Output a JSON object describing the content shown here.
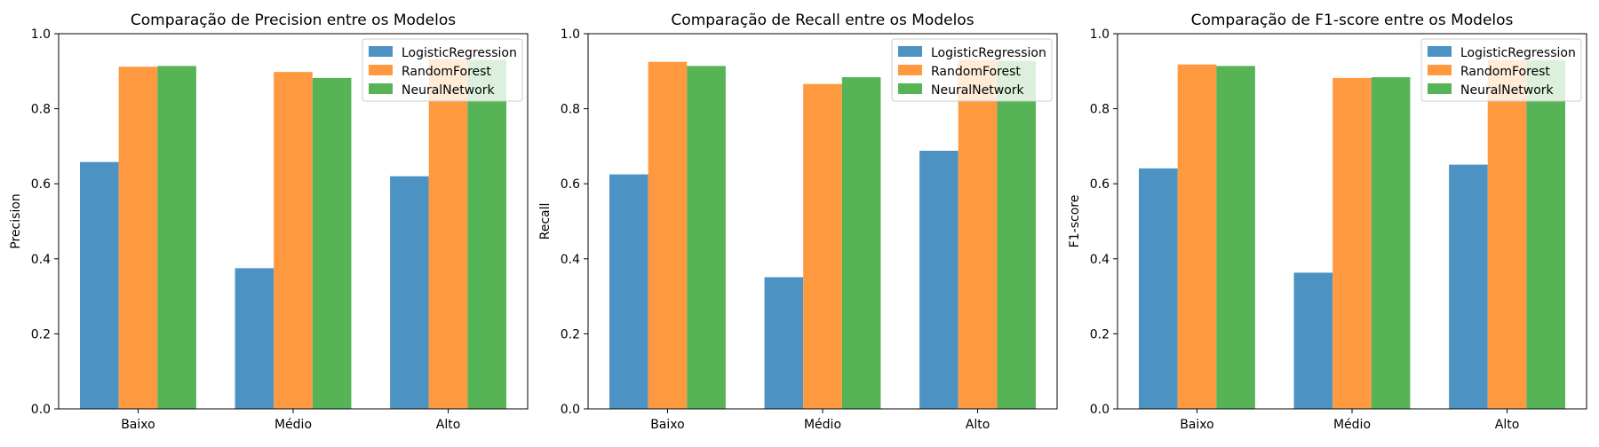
{
  "colors": {
    "LogisticRegression": "#4c93c4",
    "RandomForest": "#ff993f",
    "NeuralNetwork": "#56b356"
  },
  "chart_data": [
    {
      "type": "bar",
      "title": "Comparação de Precision entre os Modelos",
      "xlabel": "",
      "ylabel": "Precision",
      "ylim": [
        0,
        1.0
      ],
      "yticks": [
        "0.0",
        "0.2",
        "0.4",
        "0.6",
        "0.8",
        "1.0"
      ],
      "grid": false,
      "legend_position": "top-right",
      "categories": [
        "Baixo",
        "Médio",
        "Alto"
      ],
      "series": [
        {
          "name": "LogisticRegression",
          "values": [
            0.658,
            0.375,
            0.62
          ]
        },
        {
          "name": "RandomForest",
          "values": [
            0.912,
            0.898,
            0.932
          ]
        },
        {
          "name": "NeuralNetwork",
          "values": [
            0.914,
            0.882,
            0.93
          ]
        }
      ]
    },
    {
      "type": "bar",
      "title": "Comparação de Recall entre os Modelos",
      "xlabel": "",
      "ylabel": "Recall",
      "ylim": [
        0,
        1.0
      ],
      "yticks": [
        "0.0",
        "0.2",
        "0.4",
        "0.6",
        "0.8",
        "1.0"
      ],
      "grid": false,
      "legend_position": "top-right",
      "categories": [
        "Baixo",
        "Médio",
        "Alto"
      ],
      "series": [
        {
          "name": "LogisticRegression",
          "values": [
            0.625,
            0.351,
            0.688
          ]
        },
        {
          "name": "RandomForest",
          "values": [
            0.925,
            0.866,
            0.93
          ]
        },
        {
          "name": "NeuralNetwork",
          "values": [
            0.914,
            0.884,
            0.928
          ]
        }
      ]
    },
    {
      "type": "bar",
      "title": "Comparação de F1-score entre os Modelos",
      "xlabel": "",
      "ylabel": "F1-score",
      "ylim": [
        0,
        1.0
      ],
      "yticks": [
        "0.0",
        "0.2",
        "0.4",
        "0.6",
        "0.8",
        "1.0"
      ],
      "grid": false,
      "legend_position": "top-right",
      "categories": [
        "Baixo",
        "Médio",
        "Alto"
      ],
      "series": [
        {
          "name": "LogisticRegression",
          "values": [
            0.641,
            0.363,
            0.651
          ]
        },
        {
          "name": "RandomForest",
          "values": [
            0.918,
            0.882,
            0.93
          ]
        },
        {
          "name": "NeuralNetwork",
          "values": [
            0.914,
            0.884,
            0.93
          ]
        }
      ]
    }
  ]
}
